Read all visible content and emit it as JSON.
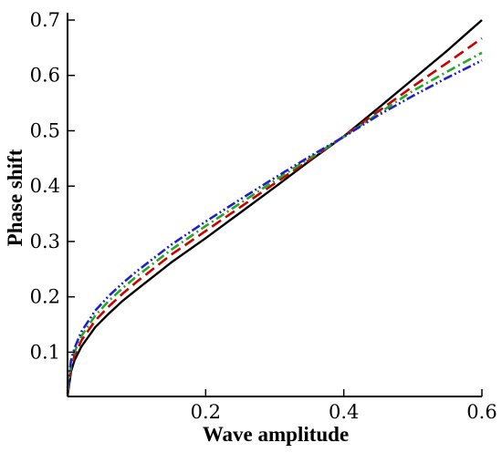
{
  "chart_data": {
    "type": "line",
    "xlabel": "Wave amplitude",
    "ylabel": "Phase shift",
    "xlim": [
      0,
      0.6
    ],
    "ylim": [
      0.02,
      0.7
    ],
    "xticks": [
      0.2,
      0.4,
      0.6
    ],
    "xtick_labels": [
      "0.2",
      "0.4",
      "0.6"
    ],
    "yticks": [
      0.1,
      0.2,
      0.3,
      0.4,
      0.5,
      0.6,
      0.7
    ],
    "ytick_labels": [
      "0.1",
      "0.2",
      "0.3",
      "0.4",
      "0.5",
      "0.6",
      "0.7"
    ],
    "grid": false,
    "legend": false,
    "x": [
      0.0,
      0.005,
      0.01,
      0.02,
      0.04,
      0.06,
      0.08,
      0.1,
      0.15,
      0.2,
      0.25,
      0.3,
      0.35,
      0.4,
      0.45,
      0.5,
      0.55,
      0.6
    ],
    "series": [
      {
        "style": "solid",
        "color": "#000000",
        "values": [
          0.02,
          0.065,
          0.085,
          0.11,
          0.145,
          0.17,
          0.193,
          0.213,
          0.262,
          0.306,
          0.352,
          0.398,
          0.445,
          0.49,
          0.541,
          0.593,
          0.645,
          0.7
        ]
      },
      {
        "style": "dashed",
        "color": "#cc0000",
        "values": [
          0.025,
          0.072,
          0.093,
          0.121,
          0.157,
          0.183,
          0.206,
          0.227,
          0.276,
          0.319,
          0.362,
          0.405,
          0.447,
          0.49,
          0.535,
          0.58,
          0.623,
          0.667
        ]
      },
      {
        "style": "dashdot",
        "color": "#22aa22",
        "values": [
          0.03,
          0.078,
          0.1,
          0.129,
          0.166,
          0.193,
          0.216,
          0.237,
          0.285,
          0.328,
          0.369,
          0.41,
          0.45,
          0.489,
          0.531,
          0.572,
          0.607,
          0.641
        ]
      },
      {
        "style": "dashdotdot",
        "color": "#1f1fcc",
        "values": [
          0.035,
          0.085,
          0.107,
          0.137,
          0.175,
          0.202,
          0.225,
          0.246,
          0.294,
          0.336,
          0.376,
          0.415,
          0.453,
          0.489,
          0.528,
          0.563,
          0.596,
          0.627
        ]
      }
    ]
  }
}
